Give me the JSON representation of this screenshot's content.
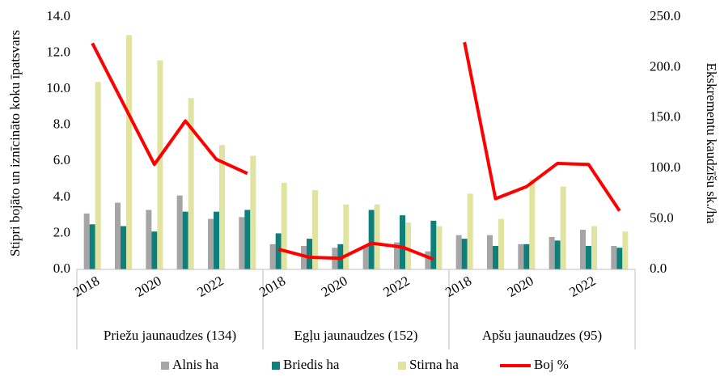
{
  "chart_data": {
    "type": "bar-line",
    "y_label": "Stipri bojāto un iznīcināto koku īpatsvars",
    "y2_label": "Ekskrementu kaudzīšu sk./ha",
    "groups": [
      "Priežu jaunaudzes (134)",
      "Egļu jaunaudzes (152)",
      "Apšu jaunaudzes (95)"
    ],
    "categories": [
      "2018",
      null,
      "2020",
      null,
      "2022",
      null,
      "2018",
      null,
      "2020",
      null,
      "2022",
      null,
      "2018",
      null,
      "2020",
      null,
      "2022",
      null
    ],
    "series": [
      {
        "name": "Alnis ha",
        "color": "#a5a5a5",
        "kind": "bar",
        "values": [
          3.1,
          3.7,
          3.3,
          4.1,
          2.8,
          2.9,
          1.4,
          1.3,
          1.2,
          1.3,
          1.5,
          1.0,
          1.9,
          1.9,
          1.4,
          1.8,
          2.2,
          1.3
        ]
      },
      {
        "name": "Briedis ha",
        "color": "#0f7f7c",
        "kind": "bar",
        "values": [
          2.5,
          2.4,
          2.1,
          3.2,
          3.2,
          3.3,
          2.0,
          1.7,
          1.4,
          3.3,
          3.0,
          2.7,
          1.7,
          1.3,
          1.4,
          1.6,
          1.3,
          1.2
        ]
      },
      {
        "name": "Stirna ha",
        "color": "#e0e4a0",
        "kind": "bar",
        "values": [
          10.4,
          13.0,
          11.6,
          9.5,
          6.9,
          6.3,
          4.8,
          4.4,
          3.6,
          3.6,
          2.6,
          2.4,
          4.2,
          2.8,
          5.0,
          4.6,
          2.4,
          2.1
        ]
      },
      {
        "name": "Boj %",
        "color": "#ff0000",
        "kind": "line",
        "axis": "y2",
        "values": [
          224,
          164,
          104,
          147,
          109,
          95,
          20,
          12,
          11,
          26,
          22,
          10,
          225,
          70,
          82,
          105,
          104,
          58
        ]
      }
    ],
    "ylim": [
      0,
      14
    ],
    "yticks": [
      {
        "value": 0,
        "label": "0.0"
      },
      {
        "value": 2,
        "label": "2.0"
      },
      {
        "value": 4,
        "label": "4.0"
      },
      {
        "value": 6,
        "label": "6.0"
      },
      {
        "value": 8,
        "label": "8.0"
      },
      {
        "value": 10,
        "label": "10.0"
      },
      {
        "value": 12,
        "label": "12.0"
      },
      {
        "value": 14,
        "label": "14.0"
      }
    ],
    "y2lim": [
      0,
      250
    ],
    "y2ticks": [
      {
        "value": 0,
        "label": "0.0"
      },
      {
        "value": 50,
        "label": "50.0"
      },
      {
        "value": 100,
        "label": "100.0"
      },
      {
        "value": 150,
        "label": "150.0"
      },
      {
        "value": 200,
        "label": "200.0"
      },
      {
        "value": 250,
        "label": "250.0"
      }
    ],
    "grid": false,
    "legend": "bottom"
  }
}
